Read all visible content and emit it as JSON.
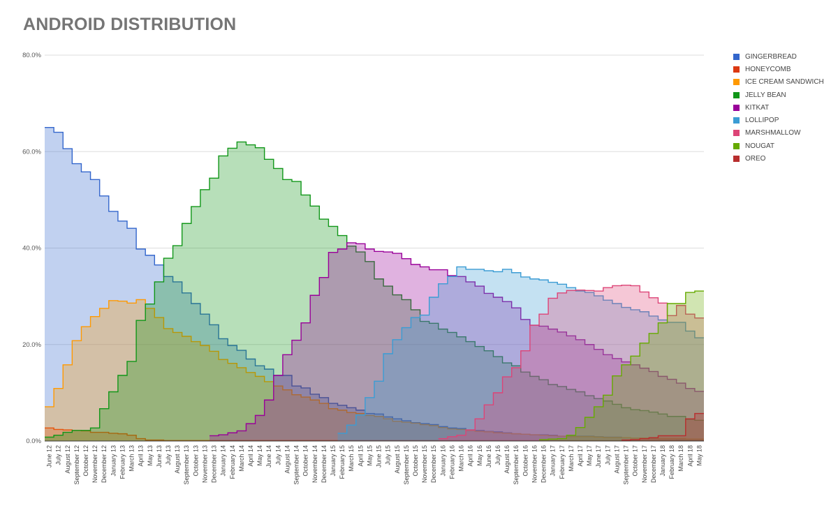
{
  "chart_data": {
    "type": "area",
    "title": "ANDROID DISTRIBUTION",
    "xlabel": "",
    "ylabel": "",
    "ylim": [
      0,
      80
    ],
    "yticks": [
      0,
      20,
      40,
      60,
      80
    ],
    "ytick_labels": [
      "0.0%",
      "20.0%",
      "40.0%",
      "60.0%",
      "80.0%"
    ],
    "grid": true,
    "legend_position": "right",
    "categories": [
      "June 12",
      "July 12",
      "August 12",
      "September 12",
      "October 12",
      "November 12",
      "December 12",
      "January 13",
      "February 13",
      "March 13",
      "April 13",
      "May 13",
      "June 13",
      "July 13",
      "August 13",
      "September 13",
      "October 13",
      "November 13",
      "December 13",
      "January 14",
      "February 14",
      "March 14",
      "April 14",
      "May 14",
      "June 14",
      "July 14",
      "August 14",
      "September 14",
      "October 14",
      "November 14",
      "December 14",
      "January 15",
      "February 15",
      "March 15",
      "April 15",
      "May 15",
      "June 15",
      "July 15",
      "August 15",
      "September 15",
      "October 15",
      "November 15",
      "December 15",
      "January 16",
      "February 16",
      "March 16",
      "April 16",
      "May 16",
      "June 16",
      "July 16",
      "August 16",
      "September 16",
      "October 16",
      "November 16",
      "December 16",
      "January 17",
      "February 17",
      "March 17",
      "April 17",
      "May 17",
      "June 17",
      "July 17",
      "August 17",
      "September 17",
      "October 17",
      "November 17",
      "December 17",
      "January 18",
      "February 18",
      "March 18",
      "April 18",
      "May 18"
    ],
    "series": [
      {
        "name": "GINGERBREAD",
        "color": "#3366cc",
        "values": [
          65.0,
          64.0,
          60.6,
          57.5,
          55.8,
          54.2,
          50.8,
          47.6,
          45.6,
          44.1,
          39.8,
          38.5,
          36.5,
          34.1,
          33.0,
          30.7,
          28.5,
          26.3,
          24.1,
          21.2,
          19.8,
          18.8,
          17.0,
          15.6,
          14.9,
          13.6,
          13.6,
          11.4,
          11.0,
          9.7,
          9.0,
          7.8,
          7.4,
          6.9,
          6.4,
          5.7,
          5.6,
          5.0,
          4.6,
          4.2,
          3.8,
          3.6,
          3.4,
          3.0,
          2.7,
          2.6,
          2.3,
          2.2,
          2.0,
          1.9,
          1.7,
          1.5,
          1.4,
          1.3,
          1.3,
          1.2,
          1.0,
          1.0,
          1.0,
          1.0,
          0.9,
          0.8,
          0.8,
          0.7,
          0.6,
          0.6,
          0.5,
          0.4,
          0.4,
          0.3,
          0.3,
          0.3
        ]
      },
      {
        "name": "HONEYCOMB",
        "color": "#dc3912",
        "values": [
          2.7,
          2.4,
          2.3,
          2.2,
          2.1,
          1.8,
          1.8,
          1.6,
          1.5,
          1.2,
          0.5,
          0.2,
          0.2,
          0.1,
          0.1,
          0.1,
          0.1,
          0.1,
          0.1,
          0.1,
          0.1,
          0.1,
          0.1,
          0.1,
          0.1,
          0.1,
          0.1,
          0.1,
          0.1,
          0.1,
          0.1,
          0.1,
          0.1,
          0.1,
          0.1,
          0.1,
          0.1,
          0.1,
          0.1,
          0.1,
          0.1,
          0.1,
          0.1,
          0.1,
          0.1,
          0.1,
          0.1,
          0.1,
          0.1,
          0.1,
          0.1,
          0.1,
          0.1,
          0.1,
          0.1,
          0.1,
          0.1,
          0.1,
          0.1,
          0.1,
          0.1,
          0.1,
          0.1,
          0.1,
          0.1,
          0.1,
          0.1,
          0.1,
          0.1,
          0.1,
          0.1,
          0.1
        ]
      },
      {
        "name": "ICE CREAM SANDWICH",
        "color": "#ff9900",
        "values": [
          7.1,
          10.9,
          15.8,
          20.8,
          23.7,
          25.8,
          27.5,
          29.1,
          29.0,
          28.6,
          29.3,
          27.5,
          25.6,
          23.3,
          22.5,
          21.7,
          20.6,
          19.8,
          18.6,
          16.9,
          16.1,
          15.2,
          14.2,
          13.4,
          12.3,
          11.4,
          10.6,
          9.6,
          9.1,
          8.5,
          7.8,
          6.7,
          6.4,
          5.9,
          5.7,
          5.3,
          5.1,
          4.6,
          4.1,
          3.9,
          3.7,
          3.4,
          3.2,
          2.8,
          2.5,
          2.4,
          2.2,
          2.0,
          1.9,
          1.7,
          1.6,
          1.5,
          1.4,
          1.3,
          1.2,
          1.1,
          1.0,
          0.9,
          0.9,
          0.9,
          0.8,
          0.7,
          0.7,
          0.7,
          0.6,
          0.6,
          0.6,
          0.5,
          0.5,
          0.5,
          0.4,
          0.4
        ]
      },
      {
        "name": "JELLY BEAN",
        "color": "#109618",
        "values": [
          0.8,
          1.2,
          1.8,
          2.2,
          2.2,
          2.7,
          6.7,
          10.2,
          13.6,
          16.5,
          25.0,
          28.4,
          33.0,
          37.9,
          40.5,
          45.1,
          48.6,
          52.1,
          54.5,
          59.1,
          60.7,
          62.0,
          61.4,
          60.8,
          58.4,
          56.5,
          54.2,
          53.8,
          51.0,
          48.7,
          46.0,
          44.5,
          42.6,
          40.4,
          39.2,
          37.2,
          33.6,
          32.1,
          30.3,
          29.3,
          27.2,
          24.8,
          24.4,
          23.2,
          22.5,
          21.6,
          20.6,
          19.6,
          18.7,
          17.5,
          16.2,
          15.6,
          14.3,
          13.4,
          12.7,
          11.7,
          11.3,
          10.7,
          10.2,
          9.4,
          8.8,
          8.3,
          7.6,
          6.9,
          6.5,
          6.3,
          6.0,
          5.6,
          5.1,
          5.1,
          4.5,
          4.3
        ]
      },
      {
        "name": "KITKAT",
        "color": "#990099",
        "values": [
          0,
          0,
          0,
          0,
          0,
          0,
          0,
          0,
          0,
          0,
          0,
          0,
          0,
          0,
          0,
          0,
          0,
          0,
          1.1,
          1.3,
          1.7,
          2.1,
          3.6,
          5.3,
          8.5,
          13.6,
          17.9,
          20.9,
          24.5,
          30.2,
          33.9,
          39.1,
          39.8,
          41.1,
          40.9,
          39.8,
          39.3,
          39.2,
          38.9,
          37.8,
          36.6,
          36.1,
          35.5,
          35.5,
          34.3,
          34.1,
          33.0,
          32.1,
          30.6,
          29.8,
          28.9,
          27.6,
          25.2,
          24.0,
          23.8,
          23.2,
          22.6,
          21.8,
          21.0,
          20.0,
          19.0,
          17.9,
          17.1,
          16.4,
          15.8,
          15.1,
          14.4,
          13.4,
          12.8,
          12.0,
          10.9,
          10.3
        ]
      },
      {
        "name": "LOLLIPOP",
        "color": "#3b9cd4",
        "values": [
          0,
          0,
          0,
          0,
          0,
          0,
          0,
          0,
          0,
          0,
          0,
          0,
          0,
          0,
          0,
          0,
          0,
          0,
          0,
          0,
          0,
          0,
          0,
          0,
          0,
          0,
          0,
          0,
          0,
          0,
          0,
          0,
          1.6,
          3.3,
          5.4,
          9.0,
          12.4,
          18.1,
          21.0,
          23.5,
          25.6,
          26.1,
          29.8,
          32.6,
          34.1,
          36.1,
          35.6,
          35.6,
          35.3,
          35.1,
          35.6,
          34.9,
          34.0,
          33.6,
          33.4,
          32.9,
          32.5,
          31.8,
          31.1,
          30.8,
          30.1,
          29.2,
          28.5,
          27.7,
          27.2,
          26.8,
          25.9,
          25.1,
          24.6,
          24.6,
          22.8,
          21.4
        ]
      },
      {
        "name": "MARSHMALLOW",
        "color": "#dd4477",
        "values": [
          0,
          0,
          0,
          0,
          0,
          0,
          0,
          0,
          0,
          0,
          0,
          0,
          0,
          0,
          0,
          0,
          0,
          0,
          0,
          0,
          0,
          0,
          0,
          0,
          0,
          0,
          0,
          0,
          0,
          0,
          0,
          0,
          0,
          0,
          0,
          0,
          0,
          0,
          0,
          0,
          0,
          0,
          0,
          0.5,
          0.9,
          1.2,
          2.3,
          4.6,
          7.5,
          10.0,
          13.3,
          15.2,
          18.7,
          24.0,
          26.3,
          29.6,
          30.7,
          31.2,
          31.3,
          31.2,
          31.1,
          31.8,
          32.2,
          32.3,
          32.2,
          30.9,
          29.7,
          28.6,
          26.0,
          28.1,
          26.3,
          25.5
        ]
      },
      {
        "name": "NOUGAT",
        "color": "#66aa00",
        "values": [
          0,
          0,
          0,
          0,
          0,
          0,
          0,
          0,
          0,
          0,
          0,
          0,
          0,
          0,
          0,
          0,
          0,
          0,
          0,
          0,
          0,
          0,
          0,
          0,
          0,
          0,
          0,
          0,
          0,
          0,
          0,
          0,
          0,
          0,
          0,
          0,
          0,
          0,
          0,
          0,
          0,
          0,
          0,
          0,
          0,
          0,
          0,
          0,
          0,
          0,
          0,
          0,
          0,
          0,
          0.3,
          0.4,
          0.5,
          1.2,
          2.8,
          4.9,
          7.1,
          9.5,
          13.5,
          15.8,
          17.6,
          20.3,
          22.3,
          24.5,
          28.5,
          28.5,
          30.8,
          31.1
        ]
      },
      {
        "name": "OREO",
        "color": "#b82e2e",
        "values": [
          0,
          0,
          0,
          0,
          0,
          0,
          0,
          0,
          0,
          0,
          0,
          0,
          0,
          0,
          0,
          0,
          0,
          0,
          0,
          0,
          0,
          0,
          0,
          0,
          0,
          0,
          0,
          0,
          0,
          0,
          0,
          0,
          0,
          0,
          0,
          0,
          0,
          0,
          0,
          0,
          0,
          0,
          0,
          0,
          0,
          0,
          0,
          0,
          0,
          0,
          0,
          0,
          0,
          0,
          0,
          0,
          0,
          0,
          0,
          0,
          0,
          0,
          0,
          0.2,
          0.3,
          0.5,
          0.7,
          1.1,
          1.1,
          1.1,
          4.6,
          5.7
        ]
      }
    ]
  }
}
